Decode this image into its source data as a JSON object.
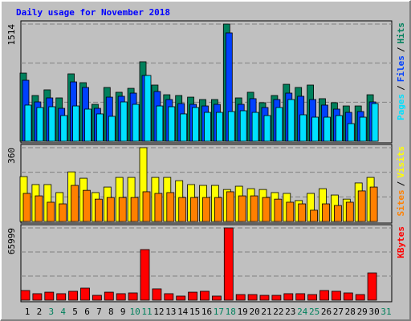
{
  "chart_data": [
    {
      "type": "bar",
      "title": "Daily usage for November 2018",
      "ylim": [
        0,
        1514
      ],
      "yticks": [
        1514
      ],
      "legend_separator": "/",
      "series": [
        {
          "name": "Hits",
          "color": "#00805c",
          "values": [
            881,
            591,
            664,
            560,
            871,
            757,
            477,
            695,
            633,
            684,
            1027,
            726,
            601,
            591,
            570,
            539,
            539,
            1514,
            560,
            633,
            498,
            591,
            736,
            695,
            726,
            550,
            498,
            456,
            456,
            601,
            null
          ]
        },
        {
          "name": "Files",
          "color": "#0040ff",
          "values": [
            788,
            508,
            560,
            425,
            767,
            695,
            425,
            570,
            581,
            622,
            850,
            643,
            539,
            487,
            477,
            456,
            477,
            1400,
            477,
            550,
            436,
            539,
            622,
            581,
            539,
            467,
            415,
            373,
            384,
            508,
            null
          ]
        },
        {
          "name": "Pages",
          "color": "#00e0ff",
          "values": [
            467,
            436,
            446,
            332,
            456,
            415,
            353,
            322,
            508,
            477,
            850,
            456,
            446,
            353,
            436,
            373,
            373,
            384,
            394,
            373,
            332,
            436,
            539,
            342,
            311,
            311,
            332,
            228,
            311,
            487,
            null
          ]
        }
      ]
    },
    {
      "type": "bar",
      "ylim": [
        0,
        360
      ],
      "yticks": [
        360
      ],
      "legend_separator": "/",
      "series": [
        {
          "name": "Visits",
          "color": "#ffff00",
          "values": [
            219,
            180,
            180,
            141,
            242,
            211,
            141,
            168,
            215,
            215,
            360,
            215,
            215,
            199,
            180,
            176,
            176,
            156,
            172,
            160,
            156,
            141,
            137,
            102,
            137,
            160,
            129,
            109,
            188,
            215,
            null
          ]
        },
        {
          "name": "Sites",
          "color": "#ff8000",
          "values": [
            137,
            125,
            94,
            86,
            176,
            152,
            109,
            117,
            117,
            117,
            145,
            137,
            141,
            117,
            117,
            117,
            117,
            145,
            125,
            125,
            117,
            109,
            94,
            86,
            55,
            86,
            78,
            94,
            149,
            168,
            null
          ]
        }
      ]
    },
    {
      "type": "bar",
      "ylim": [
        0,
        65999
      ],
      "yticks": [
        65999
      ],
      "categories": [
        "1",
        "2",
        "3",
        "4",
        "5",
        "6",
        "7",
        "8",
        "9",
        "10",
        "11",
        "12",
        "13",
        "14",
        "15",
        "16",
        "17",
        "18",
        "19",
        "20",
        "21",
        "22",
        "23",
        "24",
        "25",
        "26",
        "27",
        "28",
        "29",
        "30",
        "31"
      ],
      "category_colors": [
        "#000000",
        "#000000",
        "#00805c",
        "#00805c",
        "#000000",
        "#000000",
        "#000000",
        "#000000",
        "#000000",
        "#00805c",
        "#00805c",
        "#000000",
        "#000000",
        "#000000",
        "#000000",
        "#000000",
        "#00805c",
        "#00805c",
        "#000000",
        "#000000",
        "#000000",
        "#000000",
        "#000000",
        "#00805c",
        "#00805c",
        "#000000",
        "#000000",
        "#000000",
        "#000000",
        "#000000",
        "#00805c"
      ],
      "series": [
        {
          "name": "KBytes",
          "color": "#ff0000",
          "values": [
            8800,
            5900,
            7300,
            5900,
            8100,
            11000,
            4400,
            7300,
            5900,
            6600,
            46200,
            10300,
            5900,
            3700,
            7300,
            8100,
            3700,
            65999,
            5100,
            5100,
            4400,
            4400,
            5900,
            5900,
            5100,
            8800,
            8100,
            6600,
            5100,
            24900,
            null
          ]
        }
      ]
    }
  ]
}
